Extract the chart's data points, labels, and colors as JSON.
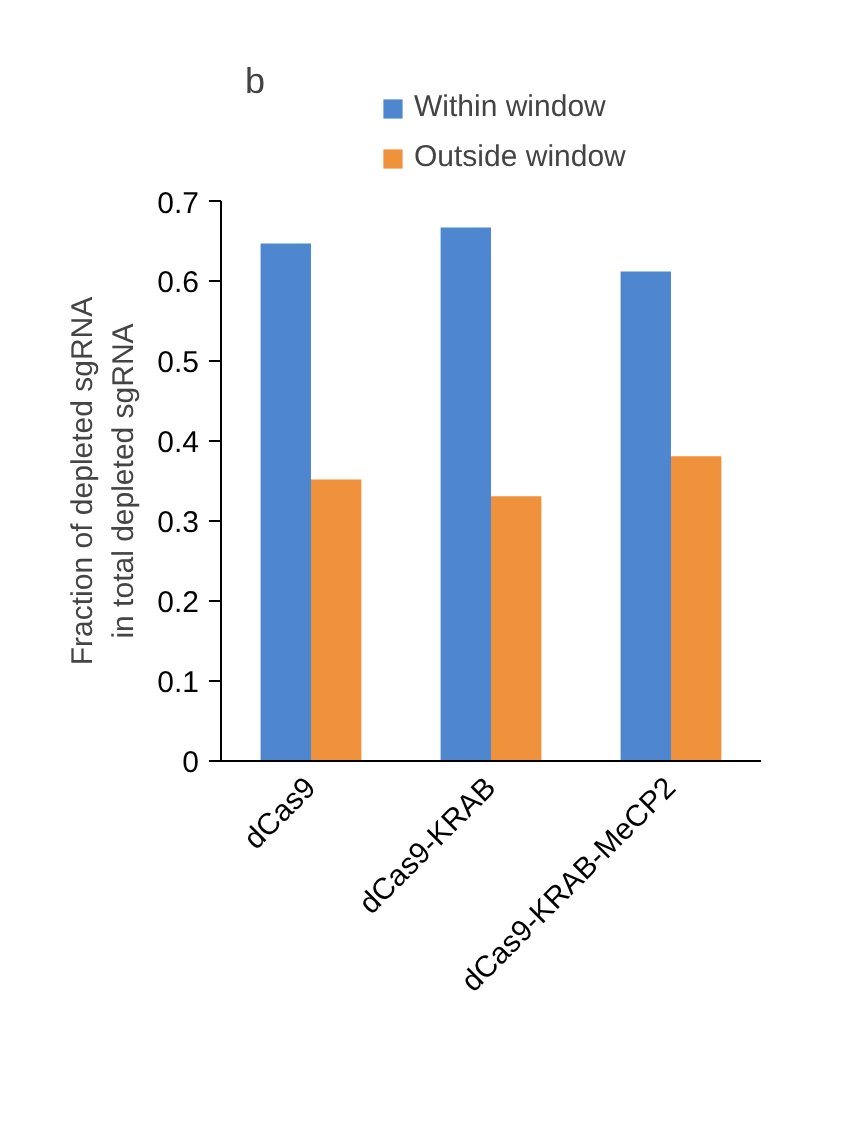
{
  "chart_data": {
    "type": "bar",
    "annotations": [
      "b"
    ],
    "ylabel": "Fraction of depleted sgRNA\nin total depleted sgRNA",
    "categories": [
      "dCas9",
      "dCas9-KRAB",
      "dCas9-KRAB-MeCP2"
    ],
    "series": [
      {
        "name": "Within window",
        "color": "#4f86d0",
        "values": [
          0.647,
          0.667,
          0.612
        ]
      },
      {
        "name": "Outside window",
        "color": "#f0913c",
        "values": [
          0.352,
          0.331,
          0.381
        ]
      }
    ],
    "ylim": [
      0,
      0.7
    ],
    "yticks": [
      {
        "value": 0,
        "label": "0"
      },
      0.1,
      0.2,
      0.3,
      0.4,
      0.5,
      0.6,
      0.7
    ],
    "grid": false,
    "legend": "top"
  }
}
